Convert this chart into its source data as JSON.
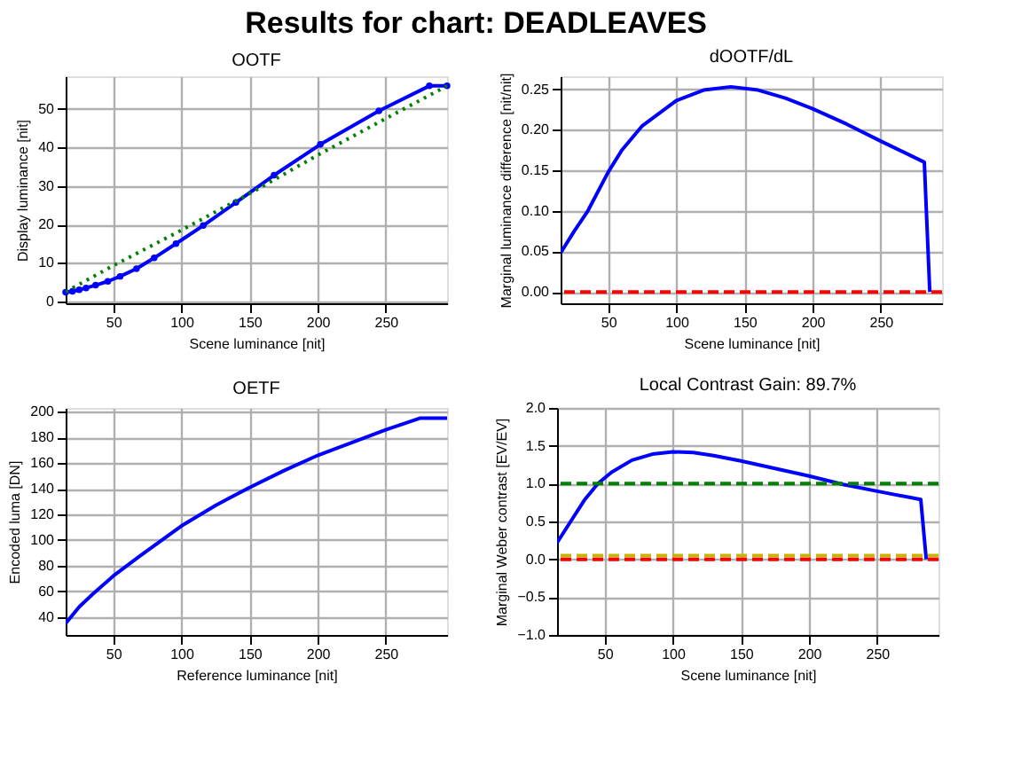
{
  "chart_data": [
    {
      "type": "other",
      "title": "Results for chart: DEADLEAVES"
    },
    {
      "type": "line",
      "title": "OOTF",
      "xlabel": "Scene luminance [nit]",
      "ylabel": "Display luminance [nit]",
      "xlim": [
        15,
        295
      ],
      "xticks": [
        50,
        100,
        150,
        200,
        250
      ],
      "ylim": [
        -0.5,
        58.5
      ],
      "yticks": [
        0,
        10,
        20,
        30,
        40,
        50
      ],
      "grid": true,
      "series": [
        {
          "color": "#0000ff",
          "marker": "circle",
          "line_style": "solid",
          "x": [
            15,
            20,
            25,
            30,
            37,
            46,
            55,
            67,
            80,
            96,
            116,
            140,
            168,
            202,
            245,
            282,
            295
          ],
          "values": [
            2.4,
            2.6,
            3,
            3.5,
            4.2,
            5.2,
            6.5,
            8.5,
            11.3,
            15,
            19.7,
            25.7,
            32.8,
            40.8,
            49.5,
            56,
            56
          ]
        },
        {
          "color": "#008000",
          "marker": "none",
          "line_style": "dotted",
          "x": [
            15,
            50,
            100,
            150,
            200,
            250,
            295
          ],
          "values": [
            2.5,
            9.3,
            18.5,
            28,
            38,
            47.5,
            56
          ]
        }
      ]
    },
    {
      "type": "line",
      "title": "dOOTF/dL",
      "xlabel": "Scene luminance [nit]",
      "ylabel": "Marginal luminance difference [nit/nit]",
      "xlim": [
        15,
        295
      ],
      "xticks": [
        50,
        100,
        150,
        200,
        250
      ],
      "ylim": [
        -0.014,
        0.266
      ],
      "yticks": [
        {
          "value": 0,
          "label": "0.00"
        },
        {
          "value": 0.05,
          "label": "0.05"
        },
        {
          "value": 0.1,
          "label": "0.10"
        },
        {
          "value": 0.15,
          "label": "0.15"
        },
        {
          "value": 0.2,
          "label": "0.20"
        },
        {
          "value": 0.25,
          "label": "0.25"
        }
      ],
      "grid": true,
      "series": [
        {
          "color": "#0000ff",
          "marker": "none",
          "line_style": "solid",
          "x": [
            15,
            25,
            35,
            50,
            60,
            75,
            100,
            120,
            140,
            160,
            180,
            200,
            225,
            250,
            282,
            286
          ],
          "values": [
            0.048,
            0.075,
            0.1,
            0.148,
            0.175,
            0.205,
            0.236,
            0.249,
            0.253,
            0.249,
            0.239,
            0.226,
            0.207,
            0.186,
            0.16,
            0
          ]
        }
      ],
      "ref_lines": [
        {
          "axis": "y",
          "value": 0,
          "color": "#ff0000",
          "line_style": "dashed"
        }
      ]
    },
    {
      "type": "line",
      "title": "OETF",
      "xlabel": "Reference luminance [nit]",
      "ylabel": "Encoded luma [DN]",
      "xlim": [
        15,
        295
      ],
      "xticks": [
        50,
        100,
        150,
        200,
        250
      ],
      "ylim": [
        26,
        203
      ],
      "yticks": [
        40,
        60,
        80,
        100,
        120,
        140,
        160,
        180,
        200
      ],
      "grid": true,
      "series": [
        {
          "color": "#0000ff",
          "marker": "none",
          "line_style": "solid",
          "x": [
            15,
            25,
            35,
            50,
            70,
            100,
            125,
            150,
            175,
            200,
            225,
            250,
            275,
            295
          ],
          "values": [
            35,
            48,
            58,
            72,
            88,
            111,
            127,
            141,
            154,
            166,
            176,
            186,
            195,
            195
          ]
        }
      ]
    },
    {
      "type": "line",
      "title": "Local Contrast Gain: 89.7%",
      "xlabel": "Scene luminance [nit]",
      "ylabel": "Marginal Weber contrast [EV/EV]",
      "xlim": [
        15,
        295
      ],
      "xticks": [
        50,
        100,
        150,
        200,
        250
      ],
      "ylim": [
        -1,
        2
      ],
      "yticks": [
        {
          "value": -1,
          "label": "−1.0"
        },
        {
          "value": -0.5,
          "label": "−0.5"
        },
        {
          "value": 0,
          "label": "0.0"
        },
        {
          "value": 0.5,
          "label": "0.5"
        },
        {
          "value": 1,
          "label": "1.0"
        },
        {
          "value": 1.5,
          "label": "1.5"
        },
        {
          "value": 2,
          "label": "2.0"
        }
      ],
      "grid": true,
      "series": [
        {
          "color": "#0000ff",
          "marker": "none",
          "line_style": "solid",
          "x": [
            15,
            25,
            35,
            45,
            55,
            70,
            85,
            100,
            115,
            130,
            150,
            175,
            200,
            225,
            250,
            282,
            286
          ],
          "values": [
            0.22,
            0.5,
            0.78,
            1.0,
            1.15,
            1.31,
            1.39,
            1.42,
            1.41,
            1.37,
            1.3,
            1.2,
            1.1,
            0.99,
            0.9,
            0.79,
            0
          ]
        }
      ],
      "ref_lines": [
        {
          "axis": "y",
          "value": 1,
          "color": "#008000",
          "line_style": "dashed"
        },
        {
          "axis": "y",
          "value": 0.05,
          "color": "#c8b400",
          "line_style": "dashed"
        },
        {
          "axis": "y",
          "value": 0,
          "color": "#ff0000",
          "line_style": "dashed"
        }
      ]
    }
  ]
}
